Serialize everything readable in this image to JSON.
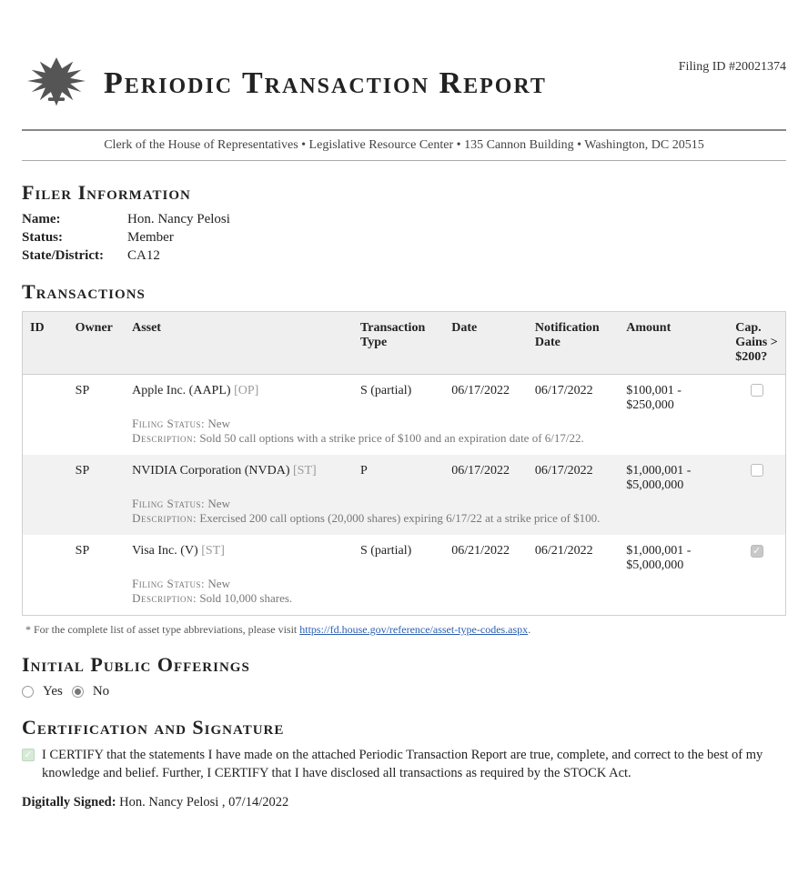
{
  "header": {
    "filing_id_label": "Filing ID #",
    "filing_id": "20021374",
    "title": "Periodic Transaction Report",
    "subheader": "Clerk of the House of Representatives • Legislative Resource Center • 135 Cannon Building • Washington, DC 20515"
  },
  "filer_section": {
    "heading": "Filer Information",
    "rows": [
      {
        "label": "Name:",
        "value": "Hon. Nancy Pelosi"
      },
      {
        "label": "Status:",
        "value": "Member"
      },
      {
        "label": "State/District:",
        "value": "CA12"
      }
    ]
  },
  "transactions_section": {
    "heading": "Transactions",
    "columns": {
      "id": "ID",
      "owner": "Owner",
      "asset": "Asset",
      "ttype": "Transaction Type",
      "date": "Date",
      "ndate": "Notification Date",
      "amount": "Amount",
      "gains": "Cap. Gains > $200?"
    },
    "rows": [
      {
        "id": "",
        "owner": "SP",
        "asset_name": "Apple Inc. (AAPL)",
        "asset_tag": "[OP]",
        "ttype": "S (partial)",
        "date": "06/17/2022",
        "ndate": "06/17/2022",
        "amount": "$100,001 - $250,000",
        "gains_checked": false,
        "filing_status_label": "Filing Status:",
        "filing_status": "New",
        "description_label": "Description:",
        "description": "Sold 50 call options with a strike price of $100 and an expiration date of 6/17/22."
      },
      {
        "id": "",
        "owner": "SP",
        "asset_name": "NVIDIA Corporation (NVDA)",
        "asset_tag": "[ST]",
        "ttype": "P",
        "date": "06/17/2022",
        "ndate": "06/17/2022",
        "amount": "$1,000,001 - $5,000,000",
        "gains_checked": false,
        "filing_status_label": "Filing Status:",
        "filing_status": "New",
        "description_label": "Description:",
        "description": "Exercised 200 call options (20,000 shares) expiring 6/17/22 at a strike price of $100."
      },
      {
        "id": "",
        "owner": "SP",
        "asset_name": "Visa Inc. (V)",
        "asset_tag": "[ST]",
        "ttype": "S (partial)",
        "date": "06/21/2022",
        "ndate": "06/21/2022",
        "amount": "$1,000,001 - $5,000,000",
        "gains_checked": true,
        "filing_status_label": "Filing Status:",
        "filing_status": "New",
        "description_label": "Description:",
        "description": "Sold 10,000 shares."
      }
    ],
    "footnote_prefix": "* For the complete list of asset type abbreviations, please visit ",
    "footnote_link_text": "https://fd.house.gov/reference/asset-type-codes.aspx",
    "footnote_suffix": "."
  },
  "ipo_section": {
    "heading": "Initial Public Offerings",
    "yes_label": "Yes",
    "no_label": "No",
    "selected": "no"
  },
  "cert_section": {
    "heading": "Certification and Signature",
    "text": "I CERTIFY that the statements I have made on the attached Periodic Transaction Report are true, complete, and correct to the best of my knowledge and belief. Further, I CERTIFY that I have disclosed all transactions as required by the STOCK Act.",
    "sig_label": "Digitally Signed:",
    "sig_value": "Hon. Nancy Pelosi , 07/14/2022"
  }
}
